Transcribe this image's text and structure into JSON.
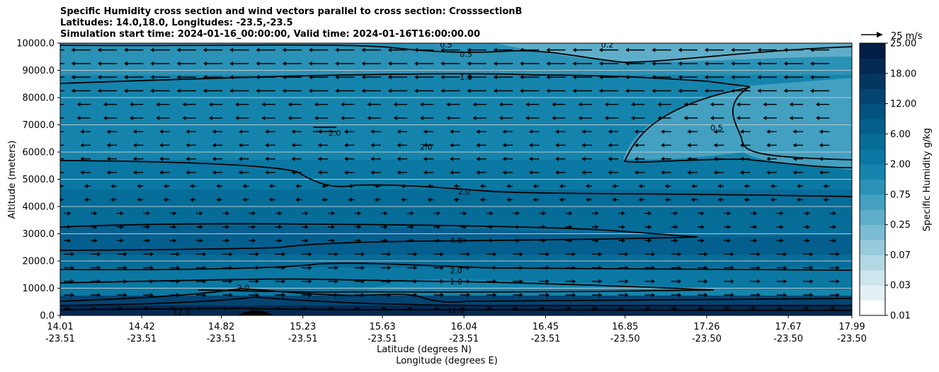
{
  "chart_data": {
    "type": "heatmap",
    "title_lines": [
      "Specific Humidity cross section and wind vectors parallel to cross section: CrosssectionB",
      "Latitudes: 14.0,18.0, Longitudes: -23.5,-23.5",
      "Simulation start time: 2024-01-16_00:00:00, Valid time: 2024-01-16T16:00:00.00"
    ],
    "ylabel": "Altitude (meters)",
    "xlabel_lines": [
      "Latitude (degrees N)",
      "Longitude (degrees E)"
    ],
    "ylim": [
      0,
      10000
    ],
    "yticks": [
      "0.0",
      "1000.0",
      "2000.0",
      "3000.0",
      "4000.0",
      "5000.0",
      "6000.0",
      "7000.0",
      "8000.0",
      "9000.0",
      "10000.0"
    ],
    "xticks": [
      {
        "lat": "14.01",
        "lon": "-23.51"
      },
      {
        "lat": "14.42",
        "lon": "-23.51"
      },
      {
        "lat": "14.82",
        "lon": "-23.51"
      },
      {
        "lat": "15.23",
        "lon": "-23.51"
      },
      {
        "lat": "15.63",
        "lon": "-23.51"
      },
      {
        "lat": "16.04",
        "lon": "-23.51"
      },
      {
        "lat": "16.45",
        "lon": "-23.51"
      },
      {
        "lat": "16.85",
        "lon": "-23.50"
      },
      {
        "lat": "17.26",
        "lon": "-23.50"
      },
      {
        "lat": "17.67",
        "lon": "-23.50"
      },
      {
        "lat": "17.99",
        "lon": "-23.50"
      }
    ],
    "grid": "horizontal",
    "colorbar": {
      "label": "Specific Humidity g/kg",
      "tick_labels": [
        "0.01",
        "0.03",
        "0.07",
        "0.25",
        "0.75",
        "2.00",
        "6.00",
        "12.00",
        "18.00",
        "25.00"
      ],
      "colors": [
        "#ffffff",
        "#e4f0f4",
        "#cde5ec",
        "#b3d8e4",
        "#98cadb",
        "#7cbcd2",
        "#5faec9",
        "#43a0c0",
        "#2a92b6",
        "#1584ac",
        "#0a78a2",
        "#066c98",
        "#045f8e",
        "#035280",
        "#034471",
        "#033661",
        "#022a52",
        "#011d44"
      ]
    },
    "quiver_key": {
      "label": "25 m/s",
      "value": 25
    },
    "contour_labels": [
      {
        "text": "0.5",
        "x_lat": 16.05,
        "alt": 9600
      },
      {
        "text": "1.0",
        "x_lat": 16.05,
        "alt": 8750
      },
      {
        "text": "2.0",
        "x_lat": 15.39,
        "alt": 6700
      },
      {
        "text": "2.0",
        "x_lat": 15.85,
        "alt": 6200
      },
      {
        "text": "0.5",
        "x_lat": 17.31,
        "alt": 6900
      },
      {
        "text": "2.0",
        "x_lat": 16.04,
        "alt": 4550
      },
      {
        "text": "4.0",
        "x_lat": 16.0,
        "alt": 2750
      },
      {
        "text": "2.0",
        "x_lat": 16.0,
        "alt": 1650
      },
      {
        "text": "1.0",
        "x_lat": 16.0,
        "alt": 1250
      },
      {
        "text": "12.0",
        "x_lat": 16.0,
        "alt": 200
      },
      {
        "text": "2.0",
        "x_lat": 14.93,
        "alt": 1030
      },
      {
        "text": "12.0",
        "x_lat": 14.62,
        "alt": 120
      },
      {
        "text": "0.2",
        "x_lat": 16.76,
        "alt": 9950
      },
      {
        "text": "0.5",
        "x_lat": 15.95,
        "alt": 9950
      }
    ]
  }
}
